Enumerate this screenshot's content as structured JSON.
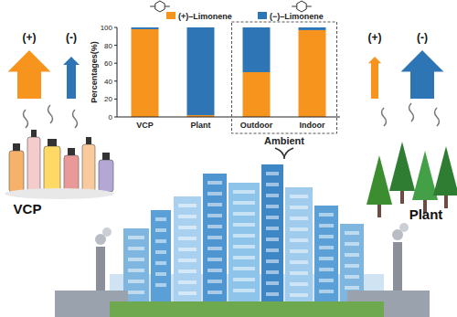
{
  "chart_data": {
    "type": "bar",
    "stacked": true,
    "categories": [
      "VCP",
      "Plant",
      "Outdoor",
      "Indoor"
    ],
    "series": [
      {
        "name": "(+)–Limonene",
        "color": "#f7941d",
        "values": [
          98,
          2,
          50,
          97
        ]
      },
      {
        "name": "(−)–Limonene",
        "color": "#2e75b6",
        "values": [
          2,
          98,
          50,
          3
        ]
      }
    ],
    "y_label": "Percentages(%)",
    "ylim": [
      0,
      100
    ],
    "yticks": [
      0,
      20,
      40,
      60,
      80,
      100
    ],
    "legend": "top",
    "annotations": [
      "Ambient",
      "VCP",
      "Plant",
      "(+)",
      "(-)",
      "(+)",
      "(-)"
    ]
  }
}
